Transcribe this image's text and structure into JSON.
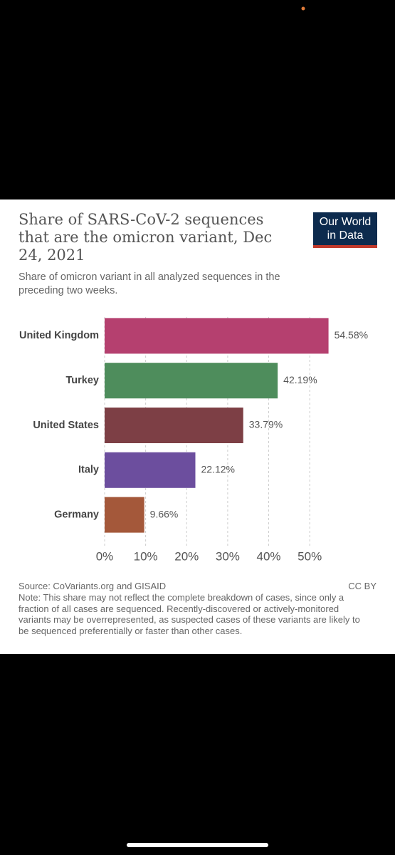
{
  "chart_data": {
    "type": "barh",
    "title": "Share of SARS-CoV-2 sequences that are the omicron variant, Dec 24, 2021",
    "subtitle": "Share of omicron variant in all analyzed sequences in the preceding two weeks.",
    "logo": [
      "Our World",
      "in Data"
    ],
    "categories": [
      "United Kingdom",
      "Turkey",
      "United States",
      "Italy",
      "Germany"
    ],
    "values": [
      54.58,
      42.19,
      33.79,
      22.12,
      9.66
    ],
    "value_labels": [
      "54.58%",
      "42.19%",
      "33.79%",
      "22.12%",
      "9.66%"
    ],
    "colors": [
      "#b5406f",
      "#4e8d5c",
      "#7d3f45",
      "#6c4e9e",
      "#a4583a"
    ],
    "xlim": [
      0,
      55
    ],
    "xticks": [
      {
        "value": 0,
        "label": "0%"
      },
      {
        "value": 10,
        "label": "10%"
      },
      {
        "value": 20,
        "label": "20%"
      },
      {
        "value": 30,
        "label": "30%"
      },
      {
        "value": 40,
        "label": "40%"
      },
      {
        "value": 50,
        "label": "50%"
      }
    ],
    "grid": true,
    "source": "Source: CoVariants.org and GISAID",
    "license": "CC BY",
    "note": "Note: This share may not reflect the complete breakdown of cases, since only a fraction of all cases are sequenced. Recently-discovered or actively-monitored variants may be overrepresented, as suspected cases of these variants are likely to be sequenced preferentially or faster than other cases."
  }
}
